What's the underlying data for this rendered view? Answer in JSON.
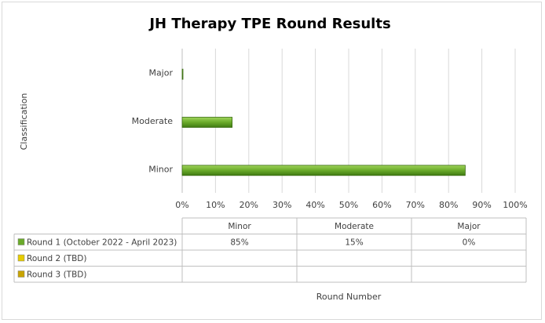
{
  "chart_data": {
    "type": "bar",
    "orientation": "horizontal",
    "title": "JH Therapy TPE Round Results",
    "ylabel": "Classification",
    "xlabel": "Round Number",
    "categories": [
      "Major",
      "Moderate",
      "Minor"
    ],
    "xlim": [
      0,
      1
    ],
    "x_ticks": [
      "0%",
      "10%",
      "20%",
      "30%",
      "40%",
      "50%",
      "60%",
      "70%",
      "80%",
      "90%",
      "100%"
    ],
    "grid": true,
    "series": [
      {
        "name": "Round 1 (October 2022 - April 2023)",
        "color": "#6aaa2a",
        "values": [
          0,
          0.15,
          0.85
        ]
      },
      {
        "name": "Round 2 (TBD)",
        "color": "#e6cc00",
        "values": [
          null,
          null,
          null
        ]
      },
      {
        "name": "Round 3 (TBD)",
        "color": "#c9a400",
        "values": [
          null,
          null,
          null
        ]
      }
    ],
    "data_table": {
      "headers": [
        "Minor",
        "Moderate",
        "Major"
      ],
      "rows": [
        [
          "85%",
          "15%",
          "0%"
        ],
        [
          "",
          "",
          ""
        ],
        [
          "",
          "",
          ""
        ]
      ]
    }
  }
}
